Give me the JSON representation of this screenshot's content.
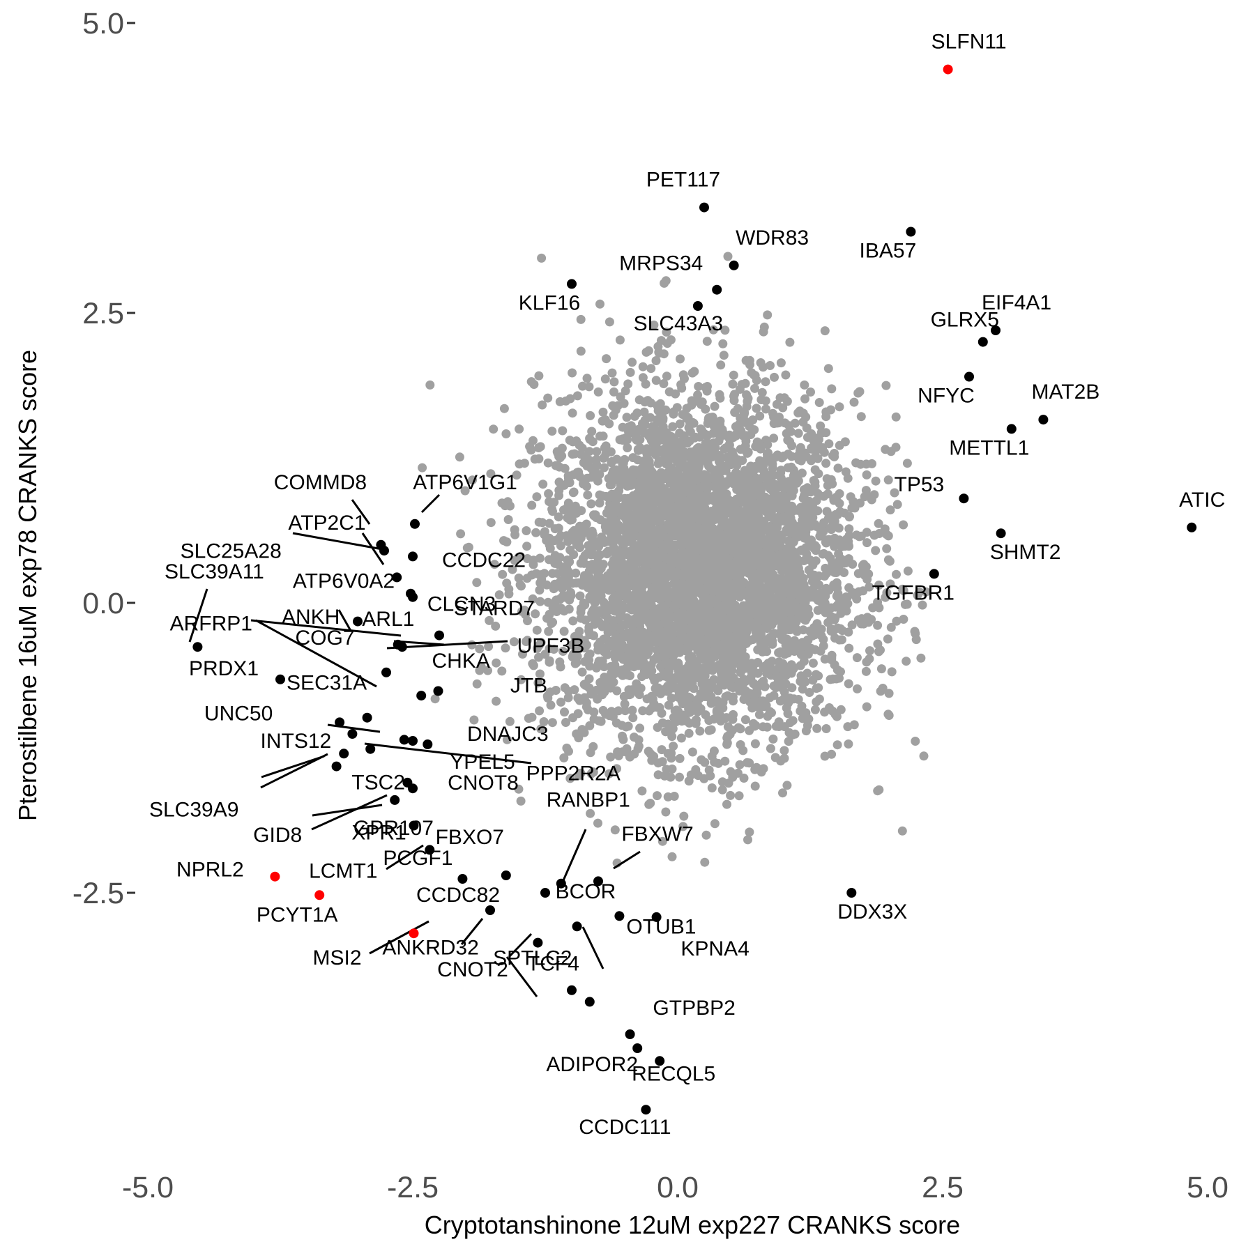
{
  "chart_data": {
    "type": "scatter",
    "xlabel": "Cryptotanshinone 12uM exp227 CRANKS score",
    "ylabel": "Pterostilbene 16uM exp78 CRANKS score",
    "xlim": [
      -5.0,
      5.0
    ],
    "ylim": [
      -4.6,
      5.0
    ],
    "x_ticks": [
      "-5.0",
      "-2.5",
      "0.0",
      "2.5",
      "5.0"
    ],
    "y_ticks": [
      "5.0-",
      "2.5-",
      "0.0-",
      "-2.5-"
    ],
    "x_tick_values": [
      -5.0,
      -2.5,
      0.0,
      2.5,
      5.0
    ],
    "y_tick_values": [
      5.0,
      2.5,
      0.0,
      -2.5
    ],
    "grid": false,
    "background_points": {
      "description_note": "",
      "color": "#a0a0a0",
      "center": [
        0.2,
        0.3
      ],
      "spread": [
        0.75,
        0.75
      ],
      "count": 4500
    },
    "highlight_colors": {
      "red": "#ff0000",
      "black": "#000000"
    },
    "points": [
      {
        "gene": "SLFN11",
        "x": 2.55,
        "y": 4.6,
        "color": "red"
      },
      {
        "gene": "PET117",
        "x": 0.25,
        "y": 3.41,
        "color": "black"
      },
      {
        "gene": "IBA57",
        "x": 2.2,
        "y": 3.2,
        "color": "black"
      },
      {
        "gene": "WDR83",
        "x": 0.53,
        "y": 2.91,
        "color": "black"
      },
      {
        "gene": "KLF16",
        "x": -1.0,
        "y": 2.75,
        "color": "black"
      },
      {
        "gene": "MRPS34",
        "x": 0.37,
        "y": 2.7,
        "color": "black"
      },
      {
        "gene": "SLC43A3",
        "x": 0.19,
        "y": 2.56,
        "color": "black"
      },
      {
        "gene": "EIF4A1",
        "x": 3.0,
        "y": 2.35,
        "color": "black"
      },
      {
        "gene": "GLRX5",
        "x": 2.88,
        "y": 2.25,
        "color": "black"
      },
      {
        "gene": "NFYC",
        "x": 2.75,
        "y": 1.95,
        "color": "black"
      },
      {
        "gene": "MAT2B",
        "x": 3.45,
        "y": 1.58,
        "color": "black"
      },
      {
        "gene": "METTL1",
        "x": 3.15,
        "y": 1.5,
        "color": "black"
      },
      {
        "gene": "TP53",
        "x": 2.7,
        "y": 0.9,
        "color": "black"
      },
      {
        "gene": "ATIC",
        "x": 4.85,
        "y": 0.65,
        "color": "black"
      },
      {
        "gene": "SHMT2",
        "x": 3.05,
        "y": 0.6,
        "color": "black"
      },
      {
        "gene": "TGFBR1",
        "x": 2.42,
        "y": 0.25,
        "color": "black"
      },
      {
        "gene": "ATP6V1G1",
        "x": -2.48,
        "y": 0.68,
        "color": "black"
      },
      {
        "gene": "COMMD8",
        "x": -2.8,
        "y": 0.5,
        "color": "black"
      },
      {
        "gene": "ATP2C1",
        "x": -2.77,
        "y": 0.45,
        "color": "black"
      },
      {
        "gene": "CCDC22",
        "x": -2.5,
        "y": 0.4,
        "color": "black"
      },
      {
        "gene": "SLC25A28",
        "x": -2.65,
        "y": 0.22,
        "color": "black"
      },
      {
        "gene": "CLCN3",
        "x": -2.52,
        "y": 0.08,
        "color": "black"
      },
      {
        "gene": "STARD7",
        "x": -2.5,
        "y": 0.05,
        "color": "black"
      },
      {
        "gene": "ATP6V0A2",
        "x": -3.02,
        "y": -0.16,
        "color": "black"
      },
      {
        "gene": "SLC39A11",
        "x": -4.53,
        "y": -0.38,
        "color": "black"
      },
      {
        "gene": "ANKH",
        "x": -2.64,
        "y": -0.36,
        "color": "black"
      },
      {
        "gene": "ARL1",
        "x": -2.6,
        "y": -0.38,
        "color": "black"
      },
      {
        "gene": "UPF3B",
        "x": -2.25,
        "y": -0.28,
        "color": "black"
      },
      {
        "gene": "PRDX1",
        "x": -3.75,
        "y": -0.66,
        "color": "black"
      },
      {
        "gene": "COG7",
        "x": -2.75,
        "y": -0.6,
        "color": "black"
      },
      {
        "gene": "CHKA",
        "x": -2.42,
        "y": -0.8,
        "color": "black"
      },
      {
        "gene": "JTB",
        "x": -2.26,
        "y": -0.76,
        "color": "black"
      },
      {
        "gene": "UNC50",
        "x": -3.19,
        "y": -1.03,
        "color": "black"
      },
      {
        "gene": "SEC31A",
        "x": -2.93,
        "y": -0.99,
        "color": "black"
      },
      {
        "gene": "ARFRP1",
        "x": -2.58,
        "y": -1.18,
        "color": "black"
      },
      {
        "gene": "DNAJC3",
        "x": -2.36,
        "y": -1.22,
        "color": "black"
      },
      {
        "gene": "INTS12",
        "x": -3.07,
        "y": -1.13,
        "color": "black"
      },
      {
        "gene": "SLC39A9",
        "x": -3.15,
        "y": -1.3,
        "color": "black"
      },
      {
        "gene": "TSC2",
        "x": -3.22,
        "y": -1.41,
        "color": "black"
      },
      {
        "gene": "YPEL5",
        "x": -2.5,
        "y": -1.19,
        "color": "black"
      },
      {
        "gene": "PPP2R2A",
        "x": -2.9,
        "y": -1.26,
        "color": "black"
      },
      {
        "gene": "GPR107",
        "x": -2.55,
        "y": -1.55,
        "color": "black"
      },
      {
        "gene": "GID8",
        "x": -2.67,
        "y": -1.7,
        "color": "black"
      },
      {
        "gene": "CNOT8",
        "x": -2.5,
        "y": -1.6,
        "color": "black"
      },
      {
        "gene": "XPR1",
        "x": -2.49,
        "y": -1.92,
        "color": "black"
      },
      {
        "gene": "LCMT1",
        "x": -2.34,
        "y": -2.13,
        "color": "black"
      },
      {
        "gene": "NPRL2",
        "x": -3.8,
        "y": -2.36,
        "color": "red"
      },
      {
        "gene": "PCYT1A",
        "x": -3.38,
        "y": -2.52,
        "color": "red"
      },
      {
        "gene": "RANBP1",
        "x": -1.1,
        "y": -2.42,
        "color": "black"
      },
      {
        "gene": "FBXO7",
        "x": -1.62,
        "y": -2.35,
        "color": "black"
      },
      {
        "gene": "FBXW7",
        "x": -0.75,
        "y": -2.4,
        "color": "black"
      },
      {
        "gene": "PCGF1",
        "x": -2.03,
        "y": -2.38,
        "color": "black"
      },
      {
        "gene": "BCOR",
        "x": -1.25,
        "y": -2.5,
        "color": "black"
      },
      {
        "gene": "OTUB1",
        "x": -0.55,
        "y": -2.7,
        "color": "black"
      },
      {
        "gene": "CCDC82",
        "x": -1.77,
        "y": -2.65,
        "color": "black"
      },
      {
        "gene": "KPNA4",
        "x": -0.2,
        "y": -2.71,
        "color": "black"
      },
      {
        "gene": "DDX3X",
        "x": 1.64,
        "y": -2.5,
        "color": "black"
      },
      {
        "gene": "MSI2",
        "x": -2.49,
        "y": -2.85,
        "color": "red"
      },
      {
        "gene": "ANKRD32",
        "x": -0.95,
        "y": -2.79,
        "color": "black"
      },
      {
        "gene": "TCF4",
        "x": -1.32,
        "y": -2.93,
        "color": "black"
      },
      {
        "gene": "CNOT2",
        "x": -1.0,
        "y": -3.34,
        "color": "black"
      },
      {
        "gene": "SPTLC2",
        "x": -0.83,
        "y": -3.44,
        "color": "black"
      },
      {
        "gene": "GTPBP2",
        "x": -0.45,
        "y": -3.72,
        "color": "black"
      },
      {
        "gene": "ADIPOR2",
        "x": -0.38,
        "y": -3.84,
        "color": "black"
      },
      {
        "gene": "RECQL5",
        "x": -0.17,
        "y": -3.95,
        "color": "black"
      },
      {
        "gene": "CCDC111",
        "x": -0.3,
        "y": -4.37,
        "color": "black"
      }
    ]
  }
}
